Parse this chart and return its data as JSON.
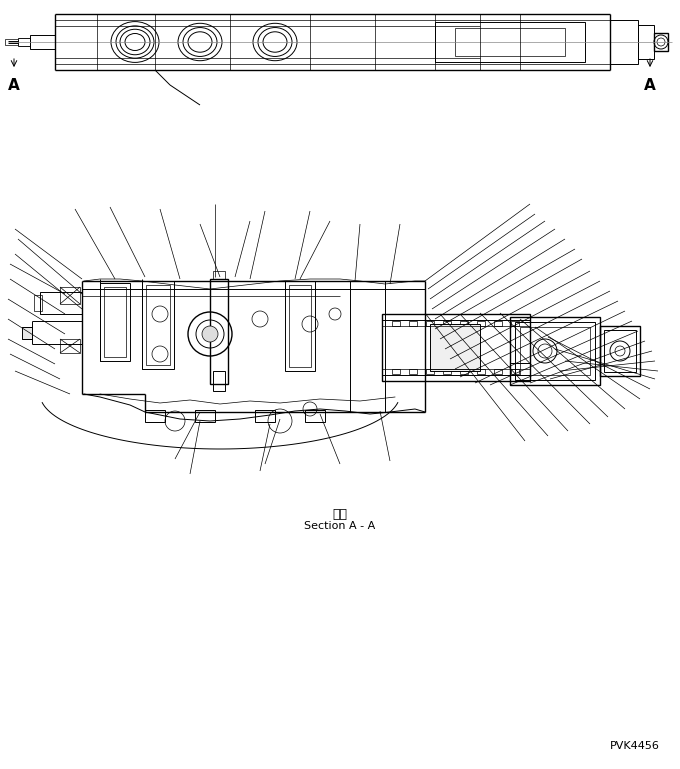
{
  "bg_color": "#ffffff",
  "line_color": "#000000",
  "fig_width": 6.8,
  "fig_height": 7.69,
  "dpi": 100,
  "label_A_left": "A",
  "label_A_right": "A",
  "section_label_jp": "断面",
  "section_label_en": "Section A - A",
  "pvk_label": "PVK4456"
}
